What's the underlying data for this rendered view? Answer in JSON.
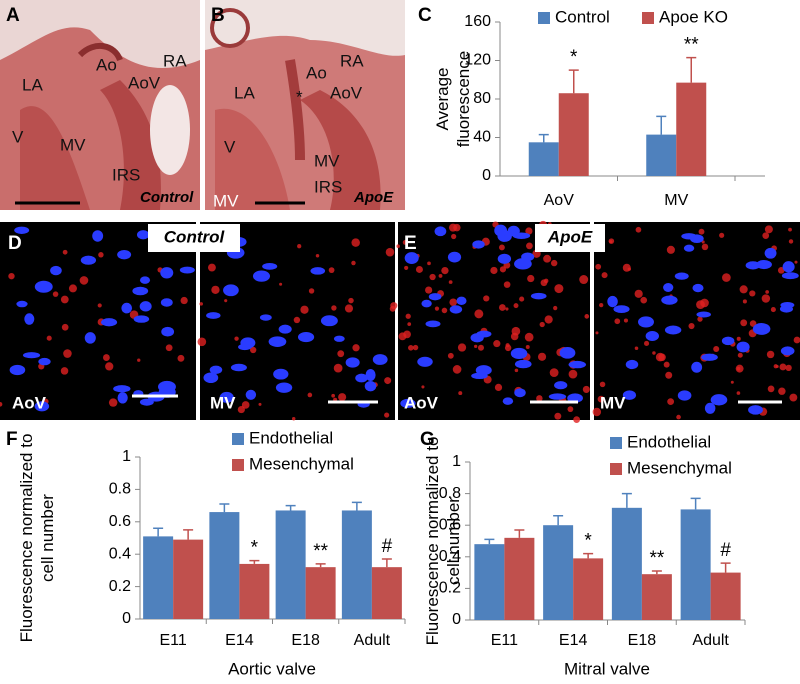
{
  "panels": {
    "histology": [
      {
        "letter": "A",
        "labels": [
          "LA",
          "Ao",
          "AoV",
          "RA",
          "V",
          "MV",
          "IRS"
        ],
        "condition": "Control"
      },
      {
        "letter": "B",
        "labels": [
          "RA",
          "Ao",
          "LA",
          "*",
          "AoV",
          "V",
          "MV",
          "IRS",
          "MV"
        ],
        "condition": "ApoE"
      }
    ],
    "fluorescence": [
      {
        "letter": "D",
        "condition": "Control",
        "views": [
          "AoV",
          "MV"
        ]
      },
      {
        "letter": "E",
        "condition": "ApoE",
        "views": [
          "AoV",
          "MV"
        ]
      }
    ]
  },
  "chart_data": [
    {
      "type": "bar",
      "panel": "C",
      "y_label": "Average fluorescence",
      "categories": [
        "AoV",
        "MV"
      ],
      "series": [
        {
          "name": "Control",
          "color": "#4f81bd",
          "values": [
            35,
            43
          ],
          "errors": [
            8,
            19
          ]
        },
        {
          "name": "Apoe KO",
          "color": "#c0504d",
          "values": [
            86,
            97
          ],
          "errors": [
            24,
            26
          ],
          "annotations": [
            "*",
            "**"
          ]
        }
      ],
      "ylim": [
        0,
        160
      ],
      "yticks": [
        0,
        40,
        80,
        120,
        160
      ],
      "legend": "top"
    },
    {
      "type": "bar",
      "panel": "F",
      "y_label": "Fluorescence normalized to cell number",
      "x_label": "Aortic valve",
      "categories": [
        "E11",
        "E14",
        "E18",
        "Adult"
      ],
      "series": [
        {
          "name": "Endothelial",
          "color": "#4f81bd",
          "values": [
            0.51,
            0.66,
            0.67,
            0.67
          ],
          "errors": [
            0.05,
            0.05,
            0.03,
            0.05
          ]
        },
        {
          "name": "Mesenchymal",
          "color": "#c0504d",
          "values": [
            0.49,
            0.34,
            0.32,
            0.32
          ],
          "errors": [
            0.06,
            0.02,
            0.02,
            0.05
          ],
          "annotations": [
            null,
            "*",
            "**",
            "#"
          ]
        }
      ],
      "ylim": [
        0,
        1
      ],
      "yticks": [
        0,
        0.2,
        0.4,
        0.6,
        0.8,
        1
      ],
      "legend": "top"
    },
    {
      "type": "bar",
      "panel": "G",
      "y_label": "Fluorescence normalized to cell number",
      "x_label": "Mitral valve",
      "categories": [
        "E11",
        "E14",
        "E18",
        "Adult"
      ],
      "series": [
        {
          "name": "Endothelial",
          "color": "#4f81bd",
          "values": [
            0.48,
            0.6,
            0.71,
            0.7
          ],
          "errors": [
            0.03,
            0.06,
            0.09,
            0.07
          ]
        },
        {
          "name": "Mesenchymal",
          "color": "#c0504d",
          "values": [
            0.52,
            0.39,
            0.29,
            0.3
          ],
          "errors": [
            0.05,
            0.03,
            0.02,
            0.06
          ],
          "annotations": [
            null,
            "*",
            "**",
            "#"
          ]
        }
      ],
      "ylim": [
        0,
        1
      ],
      "yticks": [
        0,
        0.2,
        0.4,
        0.6,
        0.8,
        1
      ],
      "legend": "top"
    }
  ]
}
